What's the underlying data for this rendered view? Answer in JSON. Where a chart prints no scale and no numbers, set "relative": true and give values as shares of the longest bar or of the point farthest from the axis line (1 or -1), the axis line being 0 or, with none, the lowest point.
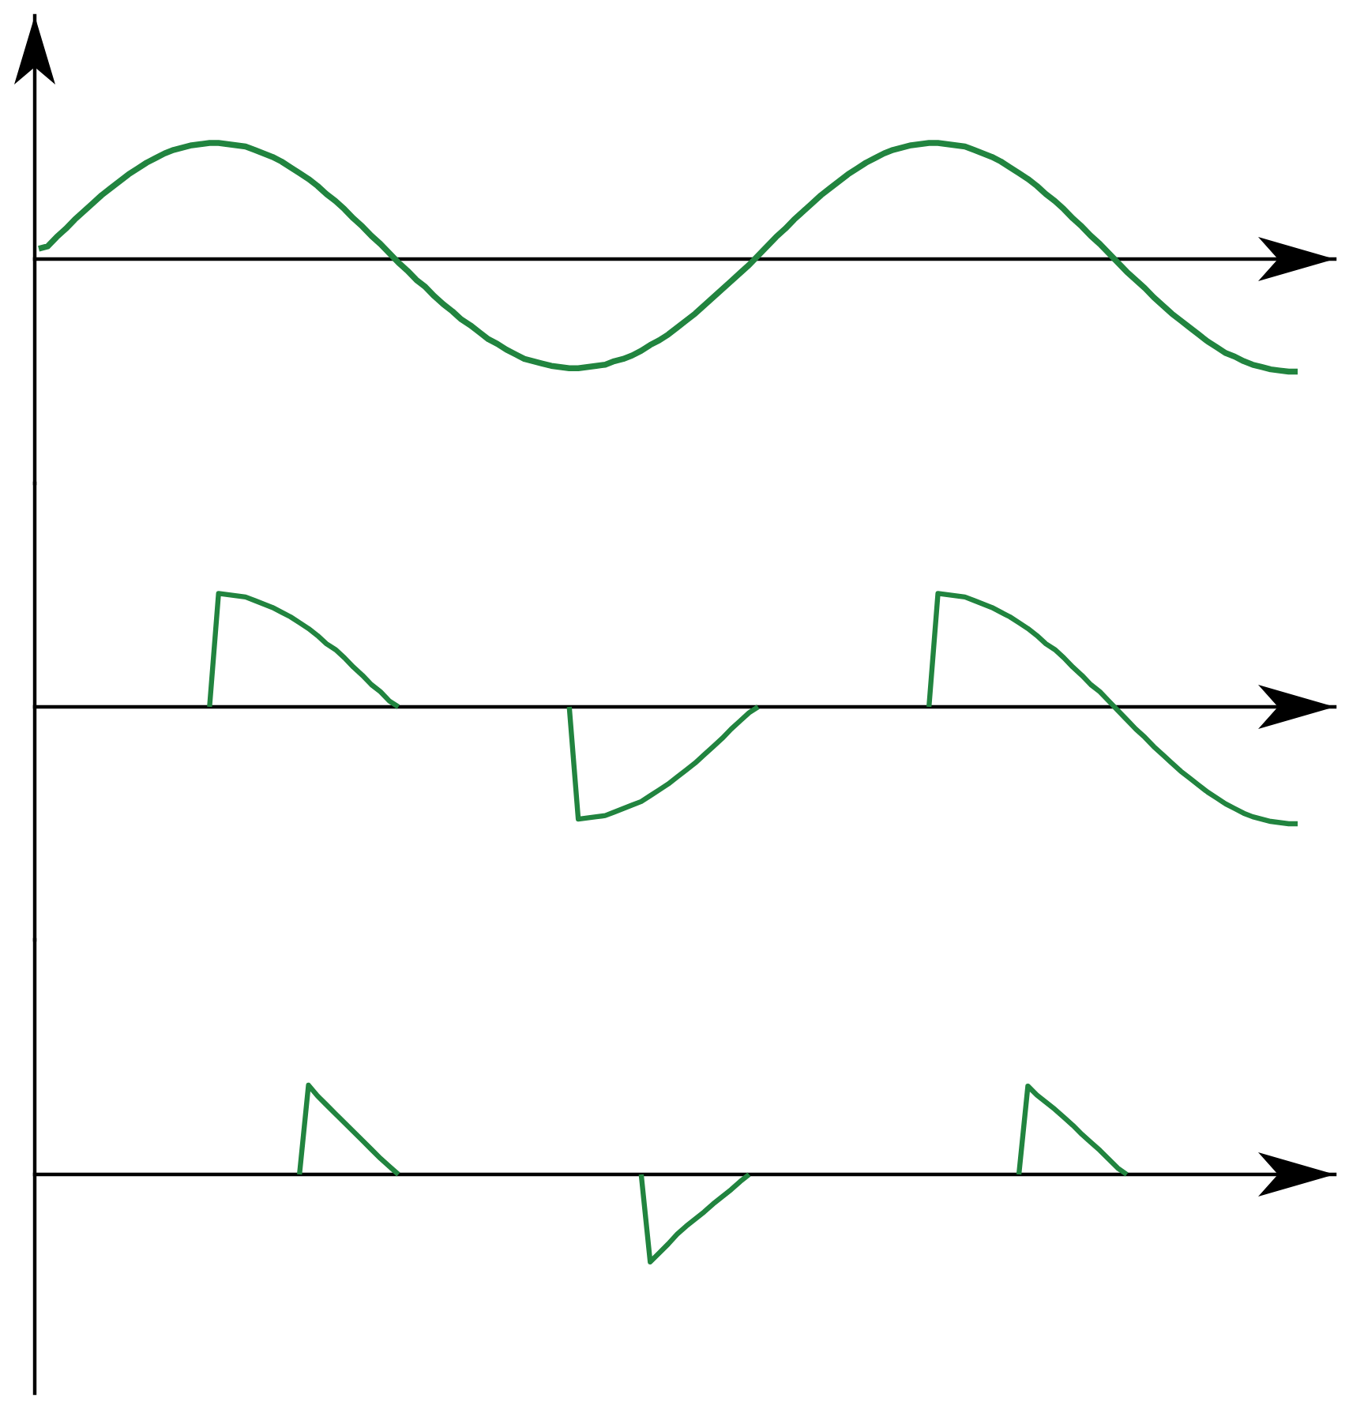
{
  "chart_data": [
    {
      "type": "line",
      "relative": true,
      "categories": [
        null,
        null,
        null,
        null,
        null,
        null,
        null,
        null,
        null,
        null,
        null,
        null,
        null,
        null,
        null,
        null,
        null,
        null,
        null,
        null,
        null,
        null,
        null,
        null,
        null,
        null,
        null,
        null,
        null,
        null,
        null,
        null,
        null,
        null,
        null,
        null,
        null,
        null,
        null,
        null,
        null,
        null,
        null,
        null,
        null,
        null,
        null,
        null,
        null,
        null,
        null,
        null,
        null,
        null,
        null,
        null,
        null,
        null,
        null,
        null,
        null,
        null,
        null,
        null,
        null,
        null,
        null,
        null,
        null,
        null,
        null,
        null,
        null,
        null,
        null,
        null,
        null,
        null,
        null,
        null,
        null,
        null,
        null,
        null,
        null,
        null,
        null,
        null,
        null,
        null,
        null,
        null,
        null,
        null,
        null,
        null,
        null,
        null,
        null,
        null,
        null,
        null,
        null,
        null,
        null,
        null,
        null,
        null,
        null,
        null,
        null,
        null,
        null,
        null,
        null,
        null,
        null,
        null,
        null,
        null,
        null,
        null,
        null,
        null,
        null,
        null,
        null,
        null,
        null,
        null,
        null,
        null,
        null,
        null,
        null,
        null,
        null,
        null,
        null,
        null,
        null
      ],
      "series": [
        {
          "color": "#21843f",
          "values": [
            0.09,
            0.11,
            0.19,
            0.26,
            0.34,
            0.41,
            0.48,
            0.55,
            0.61,
            0.67,
            0.73,
            0.78,
            0.83,
            0.87,
            0.91,
            0.94,
            0.96,
            0.98,
            0.99,
            1.0,
            1.0,
            0.99,
            0.98,
            0.97,
            0.94,
            0.91,
            0.88,
            0.84,
            0.79,
            0.74,
            0.69,
            0.63,
            0.56,
            0.5,
            0.43,
            0.35,
            0.28,
            0.2,
            0.13,
            0.05,
            -0.03,
            -0.1,
            -0.18,
            -0.24,
            -0.32,
            -0.39,
            -0.45,
            -0.52,
            -0.57,
            -0.63,
            -0.69,
            -0.73,
            -0.78,
            -0.82,
            -0.86,
            -0.88,
            -0.9,
            -0.92,
            -0.93,
            -0.94,
            -0.94,
            -0.93,
            -0.92,
            -0.91,
            -0.88,
            -0.86,
            -0.83,
            -0.79,
            -0.74,
            -0.7,
            -0.65,
            -0.59,
            -0.53,
            -0.47,
            -0.4,
            -0.33,
            -0.26,
            -0.19,
            -0.12,
            -0.05,
            0.03,
            0.11,
            0.19,
            0.26,
            0.34,
            0.41,
            0.48,
            0.55,
            0.61,
            0.67,
            0.73,
            0.78,
            0.83,
            0.87,
            0.91,
            0.94,
            0.96,
            0.98,
            0.99,
            1.0,
            1.0,
            0.99,
            0.98,
            0.97,
            0.94,
            0.91,
            0.88,
            0.84,
            0.79,
            0.74,
            0.69,
            0.63,
            0.56,
            0.5,
            0.43,
            0.35,
            0.28,
            0.2,
            0.13,
            0.05,
            -0.03,
            -0.11,
            -0.18,
            -0.25,
            -0.33,
            -0.4,
            -0.47,
            -0.53,
            -0.59,
            -0.65,
            -0.71,
            -0.76,
            -0.81,
            -0.84,
            -0.88,
            -0.91,
            -0.93,
            -0.95,
            -0.96,
            -0.97,
            -0.97
          ]
        }
      ]
    },
    {
      "type": "line",
      "relative": true,
      "categories": [
        null,
        null,
        null,
        null,
        null,
        null,
        null,
        null,
        null,
        null,
        null,
        null,
        null,
        null,
        null,
        null,
        null,
        null,
        null,
        null,
        null,
        null,
        null,
        null,
        null,
        null,
        null,
        null,
        null,
        null,
        null,
        null,
        null,
        null,
        null,
        null,
        null,
        null,
        null,
        null,
        null,
        null,
        null,
        null,
        null,
        null,
        null,
        null,
        null,
        null,
        null,
        null,
        null,
        null,
        null,
        null,
        null,
        null,
        null,
        null,
        null,
        null,
        null,
        null,
        null,
        null,
        null,
        null,
        null,
        null,
        null,
        null,
        null,
        null,
        null,
        null,
        null,
        null,
        null,
        null,
        null,
        null,
        null,
        null,
        null,
        null,
        null,
        null,
        null,
        null,
        null,
        null,
        null,
        null,
        null,
        null,
        null,
        null,
        null,
        null,
        null,
        null,
        null,
        null,
        null,
        null,
        null,
        null,
        null,
        null,
        null,
        null,
        null,
        null,
        null,
        null,
        null,
        null,
        null,
        null,
        null,
        null,
        null,
        null,
        null,
        null,
        null,
        null,
        null,
        null,
        null,
        null,
        null,
        null,
        null,
        null,
        null,
        null,
        null,
        null,
        null
      ],
      "series": [
        {
          "color": "#21843f",
          "values": [
            null,
            null,
            null,
            null,
            null,
            null,
            null,
            null,
            null,
            null,
            null,
            null,
            null,
            null,
            null,
            null,
            null,
            null,
            null,
            0,
            0.97,
            0.96,
            0.95,
            0.94,
            0.91,
            0.88,
            0.85,
            0.81,
            0.77,
            0.72,
            0.67,
            0.61,
            0.54,
            0.49,
            0.42,
            0.34,
            0.27,
            0.19,
            0.13,
            0.05,
            0,
            null,
            null,
            null,
            null,
            null,
            null,
            null,
            null,
            null,
            null,
            null,
            null,
            null,
            null,
            null,
            null,
            null,
            null,
            0,
            -0.96,
            -0.95,
            -0.94,
            -0.93,
            -0.9,
            -0.87,
            -0.84,
            -0.81,
            -0.76,
            -0.71,
            -0.66,
            -0.6,
            -0.54,
            -0.48,
            -0.41,
            -0.34,
            -0.27,
            -0.19,
            -0.12,
            -0.05,
            0,
            null,
            null,
            null,
            null,
            null,
            null,
            null,
            null,
            null,
            null,
            null,
            null,
            null,
            null,
            null,
            null,
            null,
            null,
            0,
            0.97,
            0.96,
            0.95,
            0.94,
            0.91,
            0.88,
            0.85,
            0.81,
            0.77,
            0.72,
            0.67,
            0.61,
            0.54,
            0.49,
            0.42,
            0.34,
            0.27,
            0.19,
            0.13,
            0.05,
            -0.03,
            -0.11,
            -0.19,
            -0.26,
            -0.34,
            -0.41,
            -0.48,
            -0.55,
            -0.61,
            -0.67,
            -0.73,
            -0.78,
            -0.83,
            -0.87,
            -0.91,
            -0.94,
            -0.96,
            -0.98,
            -0.99,
            -1.0,
            -1.0
          ]
        }
      ]
    },
    {
      "type": "line",
      "relative": true,
      "categories": [
        null,
        null,
        null,
        null,
        null,
        null,
        null,
        null,
        null,
        null,
        null,
        null,
        null,
        null,
        null,
        null,
        null,
        null,
        null,
        null,
        null,
        null,
        null,
        null,
        null,
        null,
        null,
        null,
        null,
        null,
        null,
        null,
        null,
        null,
        null,
        null,
        null,
        null,
        null,
        null,
        null,
        null,
        null,
        null,
        null,
        null,
        null,
        null,
        null,
        null,
        null,
        null,
        null,
        null,
        null,
        null,
        null,
        null,
        null,
        null,
        null,
        null,
        null,
        null,
        null,
        null,
        null,
        null,
        null,
        null,
        null,
        null,
        null,
        null,
        null,
        null,
        null,
        null,
        null,
        null,
        null,
        null,
        null,
        null,
        null,
        null,
        null,
        null,
        null,
        null,
        null,
        null,
        null,
        null,
        null,
        null,
        null,
        null,
        null,
        null,
        null,
        null,
        null,
        null,
        null,
        null,
        null,
        null,
        null,
        null,
        null,
        null,
        null,
        null,
        null,
        null,
        null,
        null,
        null,
        null,
        null,
        null,
        null,
        null,
        null,
        null,
        null,
        null,
        null,
        null,
        null,
        null,
        null,
        null,
        null,
        null,
        null,
        null,
        null,
        null,
        null
      ],
      "series": [
        {
          "color": "#21843f",
          "values": [
            null,
            null,
            null,
            null,
            null,
            null,
            null,
            null,
            null,
            null,
            null,
            null,
            null,
            null,
            null,
            null,
            null,
            null,
            null,
            null,
            null,
            null,
            null,
            null,
            null,
            null,
            null,
            null,
            null,
            0,
            1.0,
            0.88,
            0.78,
            0.68,
            0.58,
            0.48,
            0.38,
            0.28,
            0.18,
            0.09,
            0,
            null,
            null,
            null,
            null,
            null,
            null,
            null,
            null,
            null,
            null,
            null,
            null,
            null,
            null,
            null,
            null,
            null,
            null,
            null,
            null,
            null,
            null,
            null,
            null,
            null,
            null,
            0,
            -0.98,
            -0.88,
            -0.78,
            -0.67,
            -0.58,
            -0.5,
            -0.42,
            -0.33,
            -0.25,
            -0.17,
            -0.08,
            0,
            null,
            null,
            null,
            null,
            null,
            null,
            null,
            null,
            null,
            null,
            null,
            null,
            null,
            null,
            null,
            null,
            null,
            null,
            null,
            null,
            null,
            null,
            null,
            null,
            null,
            null,
            null,
            null,
            null,
            0,
            0.99,
            0.89,
            0.81,
            0.73,
            0.64,
            0.55,
            0.45,
            0.36,
            0.27,
            0.17,
            0.07,
            0,
            null,
            null,
            null,
            null,
            null,
            null,
            null,
            null,
            null,
            null,
            null,
            null,
            null,
            null,
            null,
            null,
            null,
            null,
            null
          ]
        }
      ]
    }
  ]
}
